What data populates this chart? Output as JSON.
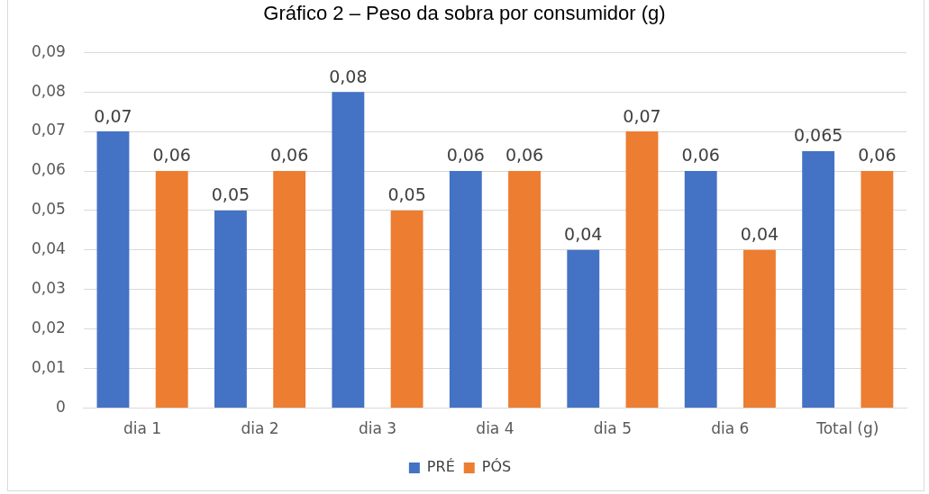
{
  "chart_data": {
    "type": "bar",
    "title": "Gráfico 2 – Peso da sobra por consumidor (g)",
    "categories": [
      "dia 1",
      "dia 2",
      "dia 3",
      "dia 4",
      "dia 5",
      "dia 6",
      "Total (g)"
    ],
    "series": [
      {
        "name": "PRÉ",
        "color": "#4472c4",
        "values": [
          0.07,
          0.05,
          0.08,
          0.06,
          0.04,
          0.06,
          0.065
        ],
        "value_labels": [
          "0,07",
          "0,05",
          "0,08",
          "0,06",
          "0,04",
          "0,06",
          "0,065"
        ]
      },
      {
        "name": "PÓS",
        "color": "#ed7d31",
        "values": [
          0.06,
          0.06,
          0.05,
          0.06,
          0.07,
          0.04,
          0.06
        ],
        "value_labels": [
          "0,06",
          "0,06",
          "0,05",
          "0,06",
          "0,07",
          "0,04",
          "0,06"
        ]
      }
    ],
    "ylim": [
      0,
      0.09
    ],
    "yticks": [
      {
        "value": 0,
        "label": "0"
      },
      {
        "value": 0.01,
        "label": "0,01"
      },
      {
        "value": 0.02,
        "label": "0,02"
      },
      {
        "value": 0.03,
        "label": "0,03"
      },
      {
        "value": 0.04,
        "label": "0,04"
      },
      {
        "value": 0.05,
        "label": "0,05"
      },
      {
        "value": 0.06,
        "label": "0,06"
      },
      {
        "value": 0.07,
        "label": "0,07"
      },
      {
        "value": 0.08,
        "label": "0,08"
      },
      {
        "value": 0.09,
        "label": "0,09"
      }
    ],
    "grid": "y",
    "legend": "bottom"
  }
}
